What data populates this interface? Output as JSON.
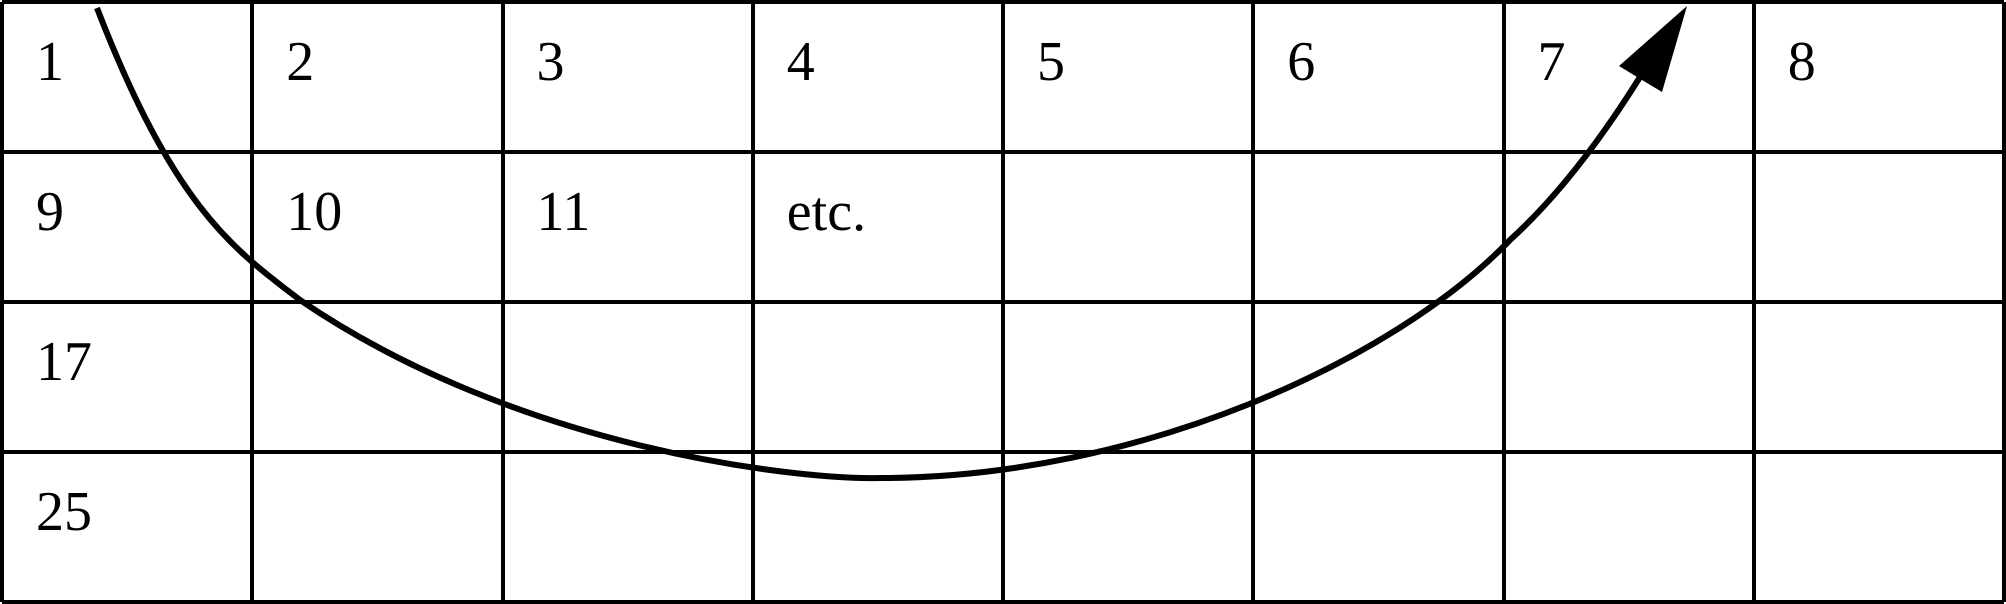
{
  "grid": {
    "rows": 4,
    "cols": 8,
    "cells": [
      {
        "row": 0,
        "col": 0,
        "label": "1"
      },
      {
        "row": 0,
        "col": 1,
        "label": "2"
      },
      {
        "row": 0,
        "col": 2,
        "label": "3"
      },
      {
        "row": 0,
        "col": 3,
        "label": "4"
      },
      {
        "row": 0,
        "col": 4,
        "label": "5"
      },
      {
        "row": 0,
        "col": 5,
        "label": "6"
      },
      {
        "row": 0,
        "col": 6,
        "label": "7"
      },
      {
        "row": 0,
        "col": 7,
        "label": "8"
      },
      {
        "row": 1,
        "col": 0,
        "label": "9"
      },
      {
        "row": 1,
        "col": 1,
        "label": "10"
      },
      {
        "row": 1,
        "col": 2,
        "label": "11"
      },
      {
        "row": 1,
        "col": 3,
        "label": "etc."
      },
      {
        "row": 2,
        "col": 0,
        "label": "17"
      },
      {
        "row": 3,
        "col": 0,
        "label": "25"
      }
    ]
  },
  "colors": {
    "line": "#000000",
    "background": "#ffffff"
  }
}
